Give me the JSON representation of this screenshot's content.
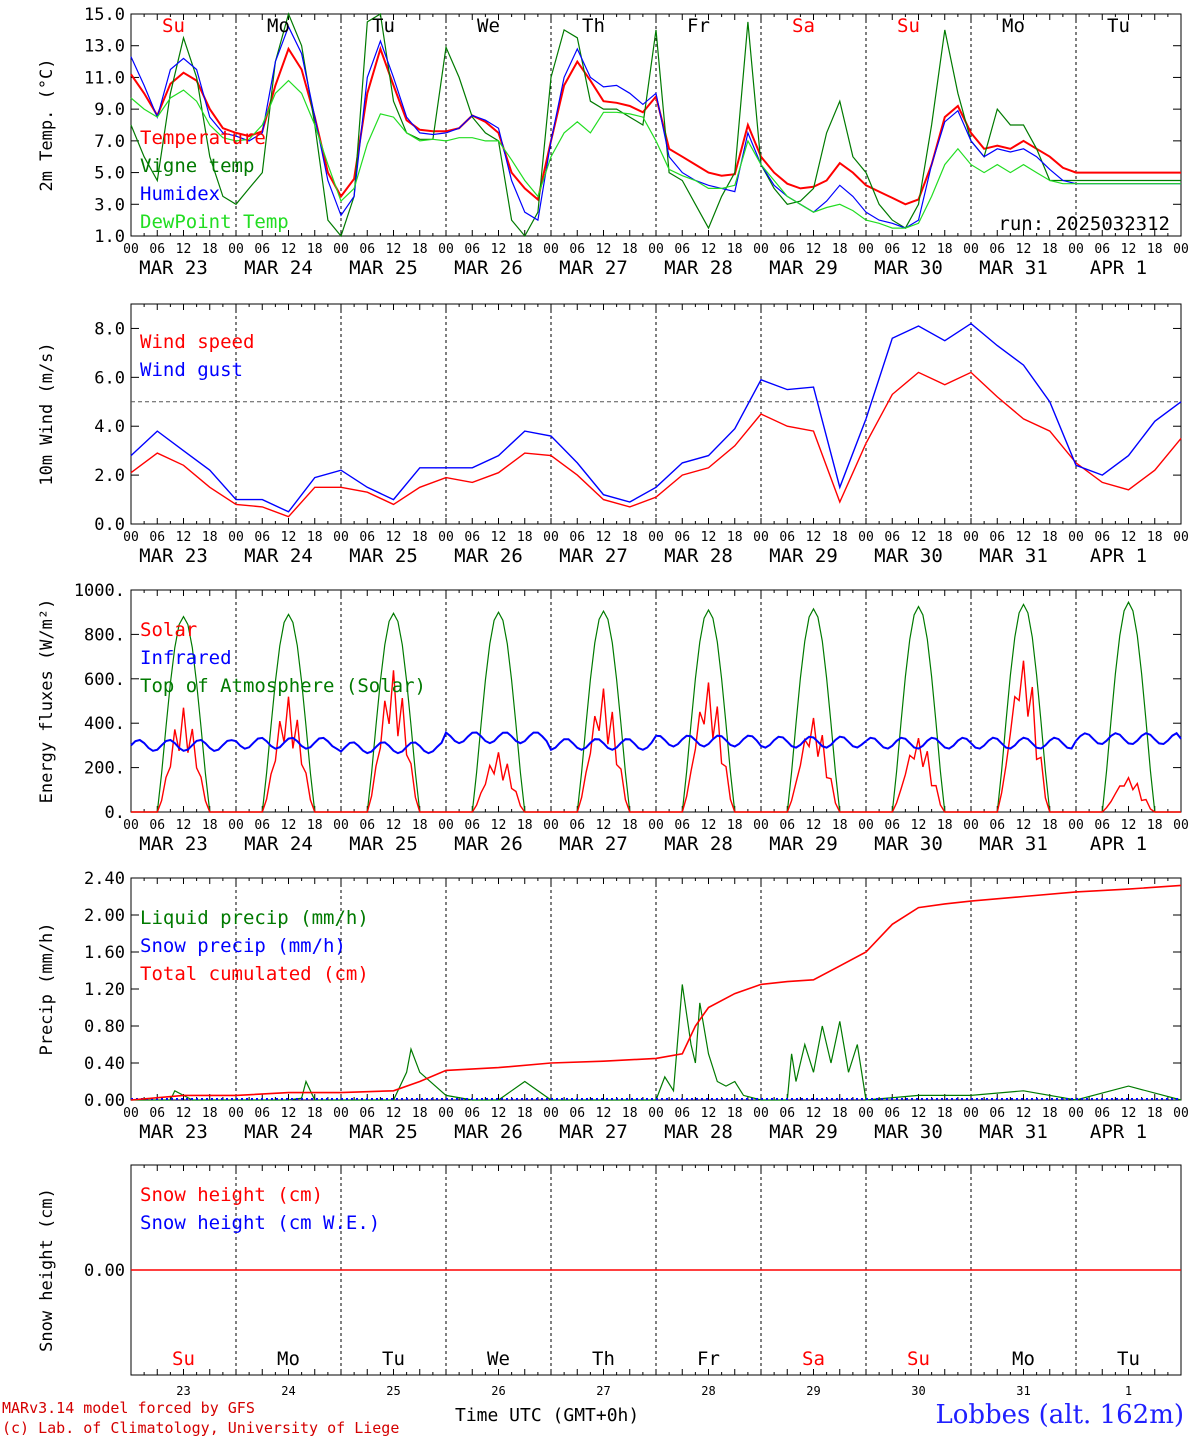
{
  "footer": {
    "model": "MARv3.14 model forced by GFS",
    "credit": "(c) Lab. of Climatology, University of Liege",
    "station": "Lobbes (alt. 162m)",
    "xlabel": "Time UTC (GMT+0h)"
  },
  "colors": {
    "red": "#ff0000",
    "green": "#007a00",
    "blue": "#0000ff",
    "lightgreen": "#22dd22",
    "grid": "#000000"
  },
  "days": {
    "names": [
      "Su",
      "Mo",
      "Tu",
      "We",
      "Th",
      "Fr",
      "Sa",
      "Su",
      "Mo",
      "Tu"
    ],
    "name_colors": [
      "#ff0000",
      "#000000",
      "#000000",
      "#000000",
      "#000000",
      "#000000",
      "#ff0000",
      "#ff0000",
      "#000000",
      "#000000"
    ],
    "dates": [
      "MAR 23",
      "MAR 24",
      "MAR 25",
      "MAR 26",
      "MAR 27",
      "MAR 28",
      "MAR 29",
      "MAR 30",
      "MAR 31",
      "APR  1"
    ],
    "numbers": [
      "23",
      "24",
      "25",
      "26",
      "27",
      "28",
      "29",
      "30",
      "31",
      "1"
    ],
    "hour_ticks": [
      "00",
      "06",
      "12",
      "18"
    ],
    "end_tick": "00"
  },
  "chart_data": [
    {
      "type": "line",
      "ylabel": "2m Temp. (°C)",
      "ylim": [
        1,
        15
      ],
      "yticks": [
        "1.0",
        "3.0",
        "5.0",
        "7.0",
        "9.0",
        "11.0",
        "13.0",
        "15.0"
      ],
      "run_label": "run: 2025032312",
      "legend": [
        "Temperature",
        "Vigne temp",
        "Humidex",
        "DewPoint Temp"
      ],
      "x_hours": [
        0,
        3,
        6,
        9,
        12,
        15,
        18,
        21,
        24,
        27,
        30,
        33,
        36,
        39,
        42,
        45,
        48,
        51,
        54,
        57,
        60,
        63,
        66,
        69,
        72,
        75,
        78,
        81,
        84,
        87,
        90,
        93,
        96,
        99,
        102,
        105,
        108,
        111,
        114,
        117,
        120,
        123,
        126,
        129,
        132,
        135,
        138,
        141,
        144,
        147,
        150,
        153,
        156,
        159,
        162,
        165,
        168,
        171,
        174,
        177,
        180,
        183,
        186,
        189,
        192,
        195,
        198,
        201,
        204,
        207,
        210,
        213,
        216,
        219,
        222,
        225,
        228,
        231,
        234,
        237,
        240
      ],
      "series": [
        {
          "name": "Temperature",
          "color": "#ff0000",
          "values": [
            11.2,
            10.0,
            8.6,
            10.6,
            11.3,
            10.8,
            9.0,
            7.8,
            7.5,
            7.3,
            7.6,
            10.5,
            12.8,
            11.5,
            8.5,
            5.0,
            3.5,
            4.6,
            10.0,
            12.8,
            10.5,
            8.3,
            7.7,
            7.6,
            7.6,
            7.8,
            8.6,
            8.2,
            7.5,
            5.0,
            4.0,
            3.3,
            7.0,
            10.5,
            12.0,
            10.8,
            9.5,
            9.4,
            9.2,
            8.8,
            9.8,
            6.5,
            6.0,
            5.5,
            5.0,
            4.8,
            4.9,
            8.0,
            6.0,
            5.0,
            4.3,
            4.0,
            4.1,
            4.5,
            5.6,
            5.0,
            4.2,
            3.8,
            3.4,
            3.0,
            3.3,
            5.5,
            8.5,
            9.2,
            7.5,
            6.5,
            6.7,
            6.5,
            7.0,
            6.5,
            6.0,
            5.3,
            5.0,
            5.0,
            5.0,
            5.0,
            5.0,
            5.0,
            5.0,
            5.0,
            5.0
          ]
        },
        {
          "name": "Vigne temp",
          "color": "#007a00",
          "values": [
            8.0,
            6.0,
            4.5,
            10.0,
            13.5,
            11.0,
            6.0,
            3.5,
            3.0,
            4.0,
            5.0,
            12.0,
            15.0,
            13.0,
            8.0,
            2.0,
            0.5,
            3.5,
            14.5,
            15.0,
            9.5,
            7.5,
            7.1,
            7.1,
            12.9,
            11.0,
            8.5,
            7.5,
            7.0,
            2.0,
            0.8,
            2.5,
            11.0,
            14.0,
            13.5,
            9.5,
            9.0,
            9.0,
            8.5,
            8.0,
            14.0,
            5.0,
            4.5,
            3.0,
            1.5,
            3.5,
            5.0,
            14.5,
            5.5,
            4.0,
            3.0,
            3.2,
            4.0,
            7.5,
            9.5,
            6.0,
            5.0,
            3.0,
            2.0,
            1.5,
            3.0,
            8.0,
            14.0,
            10.0,
            7.0,
            6.0,
            9.0,
            8.0,
            8.0,
            6.5,
            4.5,
            4.5,
            4.5,
            4.5,
            4.5,
            4.5,
            4.5,
            4.5,
            4.5,
            4.5,
            4.5
          ]
        },
        {
          "name": "Humidex",
          "color": "#0000ff",
          "values": [
            12.3,
            10.5,
            8.5,
            11.5,
            12.2,
            11.5,
            8.5,
            7.5,
            7.3,
            7.0,
            7.5,
            12.0,
            14.2,
            12.5,
            8.5,
            4.5,
            2.3,
            3.5,
            11.0,
            13.3,
            11.0,
            8.5,
            7.5,
            7.4,
            7.5,
            7.8,
            8.6,
            8.3,
            7.8,
            4.5,
            2.5,
            2.0,
            7.0,
            11.0,
            12.8,
            11.0,
            10.4,
            10.5,
            10.0,
            9.3,
            10.0,
            6.0,
            5.0,
            4.5,
            4.2,
            4.0,
            3.8,
            7.5,
            5.5,
            4.2,
            3.5,
            3.0,
            2.5,
            3.2,
            4.2,
            3.5,
            2.5,
            2.0,
            1.8,
            1.5,
            2.0,
            5.5,
            8.2,
            8.9,
            7.0,
            6.0,
            6.5,
            6.3,
            6.5,
            6.0,
            5.2,
            4.5,
            4.3,
            4.3,
            4.3,
            4.3,
            4.3,
            4.3,
            4.3,
            4.3,
            4.3
          ]
        },
        {
          "name": "DewPoint Temp",
          "color": "#22dd22",
          "values": [
            9.7,
            9.0,
            8.5,
            9.7,
            10.2,
            9.5,
            8.0,
            7.2,
            7.0,
            7.1,
            8.0,
            10.0,
            10.8,
            10.0,
            8.0,
            5.5,
            3.2,
            4.0,
            6.8,
            8.7,
            8.5,
            7.5,
            7.0,
            7.1,
            7.0,
            7.2,
            7.2,
            7.0,
            7.0,
            5.8,
            4.5,
            3.5,
            6.0,
            7.5,
            8.2,
            7.5,
            8.8,
            8.8,
            8.7,
            8.5,
            7.0,
            5.2,
            4.8,
            4.5,
            4.0,
            4.0,
            4.2,
            7.0,
            5.5,
            4.5,
            3.5,
            3.0,
            2.5,
            2.8,
            3.0,
            2.6,
            2.0,
            1.8,
            1.5,
            1.5,
            1.8,
            3.5,
            5.5,
            6.5,
            5.5,
            5.0,
            5.5,
            5.0,
            5.5,
            5.0,
            4.5,
            4.3,
            4.3,
            4.3,
            4.3,
            4.3,
            4.3,
            4.3,
            4.3,
            4.3,
            4.3
          ]
        }
      ]
    },
    {
      "type": "line",
      "ylabel": "10m Wind (m/s)",
      "ylim": [
        0,
        9
      ],
      "yticks": [
        "0.0",
        "2.0",
        "4.0",
        "6.0",
        "8.0"
      ],
      "reference_line": 5,
      "legend": [
        "Wind speed",
        "Wind gust"
      ],
      "x_hours": [
        0,
        6,
        12,
        18,
        24,
        30,
        36,
        42,
        48,
        54,
        60,
        66,
        72,
        78,
        84,
        90,
        96,
        102,
        108,
        114,
        120,
        126,
        132,
        138,
        144,
        150,
        156,
        162,
        168,
        174,
        180,
        186,
        192,
        198,
        204,
        210,
        216,
        222,
        228,
        234,
        240
      ],
      "series": [
        {
          "name": "Wind speed",
          "color": "#ff0000",
          "values": [
            2.1,
            2.9,
            2.4,
            1.5,
            0.8,
            0.7,
            0.3,
            1.5,
            1.5,
            1.3,
            0.8,
            1.5,
            1.9,
            1.7,
            2.1,
            2.9,
            2.8,
            2.0,
            1.0,
            0.7,
            1.1,
            2.0,
            2.3,
            3.2,
            4.5,
            4.0,
            3.8,
            0.9,
            3.3,
            5.3,
            6.2,
            5.7,
            6.2,
            5.2,
            4.3,
            3.8,
            2.5,
            1.7,
            1.4,
            2.2,
            3.5
          ]
        },
        {
          "name": "Wind gust",
          "color": "#0000ff",
          "values": [
            2.8,
            3.8,
            3.0,
            2.2,
            1.0,
            1.0,
            0.5,
            1.9,
            2.2,
            1.5,
            1.0,
            2.3,
            2.3,
            2.3,
            2.8,
            3.8,
            3.6,
            2.5,
            1.2,
            0.9,
            1.5,
            2.5,
            2.8,
            3.9,
            5.9,
            5.5,
            5.6,
            1.5,
            4.3,
            7.6,
            8.1,
            7.5,
            8.2,
            7.3,
            6.5,
            5.0,
            2.4,
            2.0,
            2.8,
            4.2,
            5.0
          ]
        }
      ]
    },
    {
      "type": "line",
      "ylabel": "Energy fluxes (W/m²)",
      "ylim": [
        0,
        1000
      ],
      "yticks": [
        "0.",
        "200.",
        "400.",
        "600.",
        "800.",
        "1000."
      ],
      "legend": [
        "Solar",
        "Infrared",
        "Top of Atmosphere (Solar)"
      ],
      "toa_peaks": [
        880,
        890,
        895,
        900,
        905,
        910,
        915,
        925,
        935,
        945
      ],
      "solar_peaks": [
        470,
        520,
        640,
        270,
        560,
        590,
        430,
        340,
        700,
        160
      ],
      "infrared_mean": [
        300,
        310,
        290,
        335,
        305,
        320,
        315,
        310,
        310,
        330
      ]
    },
    {
      "type": "line",
      "ylabel": "Precip (mm/h)",
      "ylim": [
        0,
        2.4
      ],
      "yticks": [
        "0.00",
        "0.40",
        "0.80",
        "1.20",
        "1.60",
        "2.00",
        "2.40"
      ],
      "legend": [
        "Liquid precip (mm/h)",
        "Snow precip (mm/h)",
        "Total cumulated (cm)"
      ],
      "cumulated": {
        "x_hours": [
          0,
          12,
          24,
          36,
          48,
          60,
          66,
          72,
          84,
          96,
          108,
          120,
          126,
          129,
          132,
          138,
          144,
          150,
          156,
          162,
          168,
          174,
          180,
          186,
          192,
          204,
          216,
          228,
          240
        ],
        "values": [
          0,
          0.05,
          0.05,
          0.08,
          0.08,
          0.1,
          0.2,
          0.32,
          0.35,
          0.4,
          0.42,
          0.45,
          0.5,
          0.8,
          1.0,
          1.15,
          1.25,
          1.28,
          1.3,
          1.45,
          1.6,
          1.9,
          2.08,
          2.12,
          2.15,
          2.2,
          2.25,
          2.28,
          2.32
        ]
      },
      "liquid": {
        "x_hours": [
          0,
          9,
          10,
          12,
          14,
          24,
          36,
          39,
          40,
          42,
          48,
          60,
          63,
          64,
          66,
          72,
          78,
          84,
          90,
          96,
          114,
          120,
          122,
          124,
          126,
          128,
          129,
          130,
          132,
          134,
          136,
          138,
          140,
          144,
          150,
          151,
          152,
          154,
          156,
          158,
          160,
          162,
          164,
          166,
          168,
          180,
          192,
          204,
          216,
          228,
          240
        ],
        "values": [
          0,
          0,
          0.1,
          0.05,
          0,
          0,
          0,
          0.02,
          0.2,
          0,
          0,
          0,
          0.3,
          0.55,
          0.3,
          0.05,
          0,
          0,
          0.2,
          0,
          0,
          0,
          0.25,
          0.1,
          1.25,
          0.6,
          0.4,
          1.05,
          0.5,
          0.2,
          0.15,
          0.2,
          0.05,
          0,
          0,
          0.5,
          0.2,
          0.6,
          0.3,
          0.8,
          0.4,
          0.85,
          0.3,
          0.6,
          0,
          0.05,
          0.05,
          0.1,
          0,
          0.15,
          0
        ]
      }
    },
    {
      "type": "line",
      "ylabel": "Snow height (cm)",
      "ylim": [
        -1,
        1
      ],
      "yticks": [
        "0.00"
      ],
      "legend": [
        "Snow height (cm)",
        "Snow height (cm W.E.)"
      ],
      "values": [
        0,
        0
      ]
    }
  ]
}
